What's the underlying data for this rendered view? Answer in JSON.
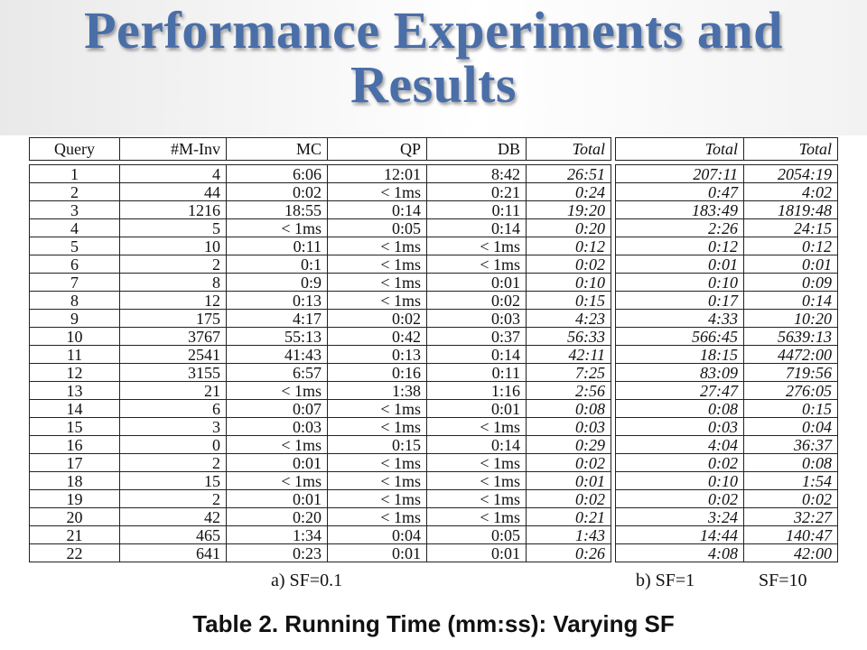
{
  "slide": {
    "title_line1": "Performance Experiments and",
    "title_line2": "Results"
  },
  "table_a": {
    "headers": [
      "Query",
      "#M-Inv",
      "MC",
      "QP",
      "DB",
      "Total"
    ],
    "rows": [
      [
        "1",
        "4",
        "6:06",
        "12:01",
        "8:42",
        "26:51"
      ],
      [
        "2",
        "44",
        "0:02",
        "< 1ms",
        "0:21",
        "0:24"
      ],
      [
        "3",
        "1216",
        "18:55",
        "0:14",
        "0:11",
        "19:20"
      ],
      [
        "4",
        "5",
        "< 1ms",
        "0:05",
        "0:14",
        "0:20"
      ],
      [
        "5",
        "10",
        "0:11",
        "< 1ms",
        "< 1ms",
        "0:12"
      ],
      [
        "6",
        "2",
        "0:1",
        "< 1ms",
        "< 1ms",
        "0:02"
      ],
      [
        "7",
        "8",
        "0:9",
        "< 1ms",
        "0:01",
        "0:10"
      ],
      [
        "8",
        "12",
        "0:13",
        "< 1ms",
        "0:02",
        "0:15"
      ],
      [
        "9",
        "175",
        "4:17",
        "0:02",
        "0:03",
        "4:23"
      ],
      [
        "10",
        "3767",
        "55:13",
        "0:42",
        "0:37",
        "56:33"
      ],
      [
        "11",
        "2541",
        "41:43",
        "0:13",
        "0:14",
        "42:11"
      ],
      [
        "12",
        "3155",
        "6:57",
        "0:16",
        "0:11",
        "7:25"
      ],
      [
        "13",
        "21",
        "< 1ms",
        "1:38",
        "1:16",
        "2:56"
      ],
      [
        "14",
        "6",
        "0:07",
        "< 1ms",
        "0:01",
        "0:08"
      ],
      [
        "15",
        "3",
        "0:03",
        "< 1ms",
        "< 1ms",
        "0:03"
      ],
      [
        "16",
        "0",
        "< 1ms",
        "0:15",
        "0:14",
        "0:29"
      ],
      [
        "17",
        "2",
        "0:01",
        "< 1ms",
        "< 1ms",
        "0:02"
      ],
      [
        "18",
        "15",
        "< 1ms",
        "< 1ms",
        "< 1ms",
        "0:01"
      ],
      [
        "19",
        "2",
        "0:01",
        "< 1ms",
        "< 1ms",
        "0:02"
      ],
      [
        "20",
        "42",
        "0:20",
        "< 1ms",
        "< 1ms",
        "0:21"
      ],
      [
        "21",
        "465",
        "1:34",
        "0:04",
        "0:05",
        "1:43"
      ],
      [
        "22",
        "641",
        "0:23",
        "0:01",
        "0:01",
        "0:26"
      ]
    ],
    "caption": "a) SF=0.1"
  },
  "table_b": {
    "headers": [
      "Total",
      "Total"
    ],
    "rows": [
      [
        "207:11",
        "2054:19"
      ],
      [
        "0:47",
        "4:02"
      ],
      [
        "183:49",
        "1819:48"
      ],
      [
        "2:26",
        "24:15"
      ],
      [
        "0:12",
        "0:12"
      ],
      [
        "0:01",
        "0:01"
      ],
      [
        "0:10",
        "0:09"
      ],
      [
        "0:17",
        "0:14"
      ],
      [
        "4:33",
        "10:20"
      ],
      [
        "566:45",
        "5639:13"
      ],
      [
        "18:15",
        "4472:00"
      ],
      [
        "83:09",
        "719:56"
      ],
      [
        "27:47",
        "276:05"
      ],
      [
        "0:08",
        "0:15"
      ],
      [
        "0:03",
        "0:04"
      ],
      [
        "4:04",
        "36:37"
      ],
      [
        "0:02",
        "0:08"
      ],
      [
        "0:10",
        "1:54"
      ],
      [
        "0:02",
        "0:02"
      ],
      [
        "3:24",
        "32:27"
      ],
      [
        "14:44",
        "140:47"
      ],
      [
        "4:08",
        "42:00"
      ]
    ],
    "caption_left": "b) SF=1",
    "caption_right": "SF=10"
  },
  "caption": "Table 2. Running Time (mm:ss): Varying SF"
}
